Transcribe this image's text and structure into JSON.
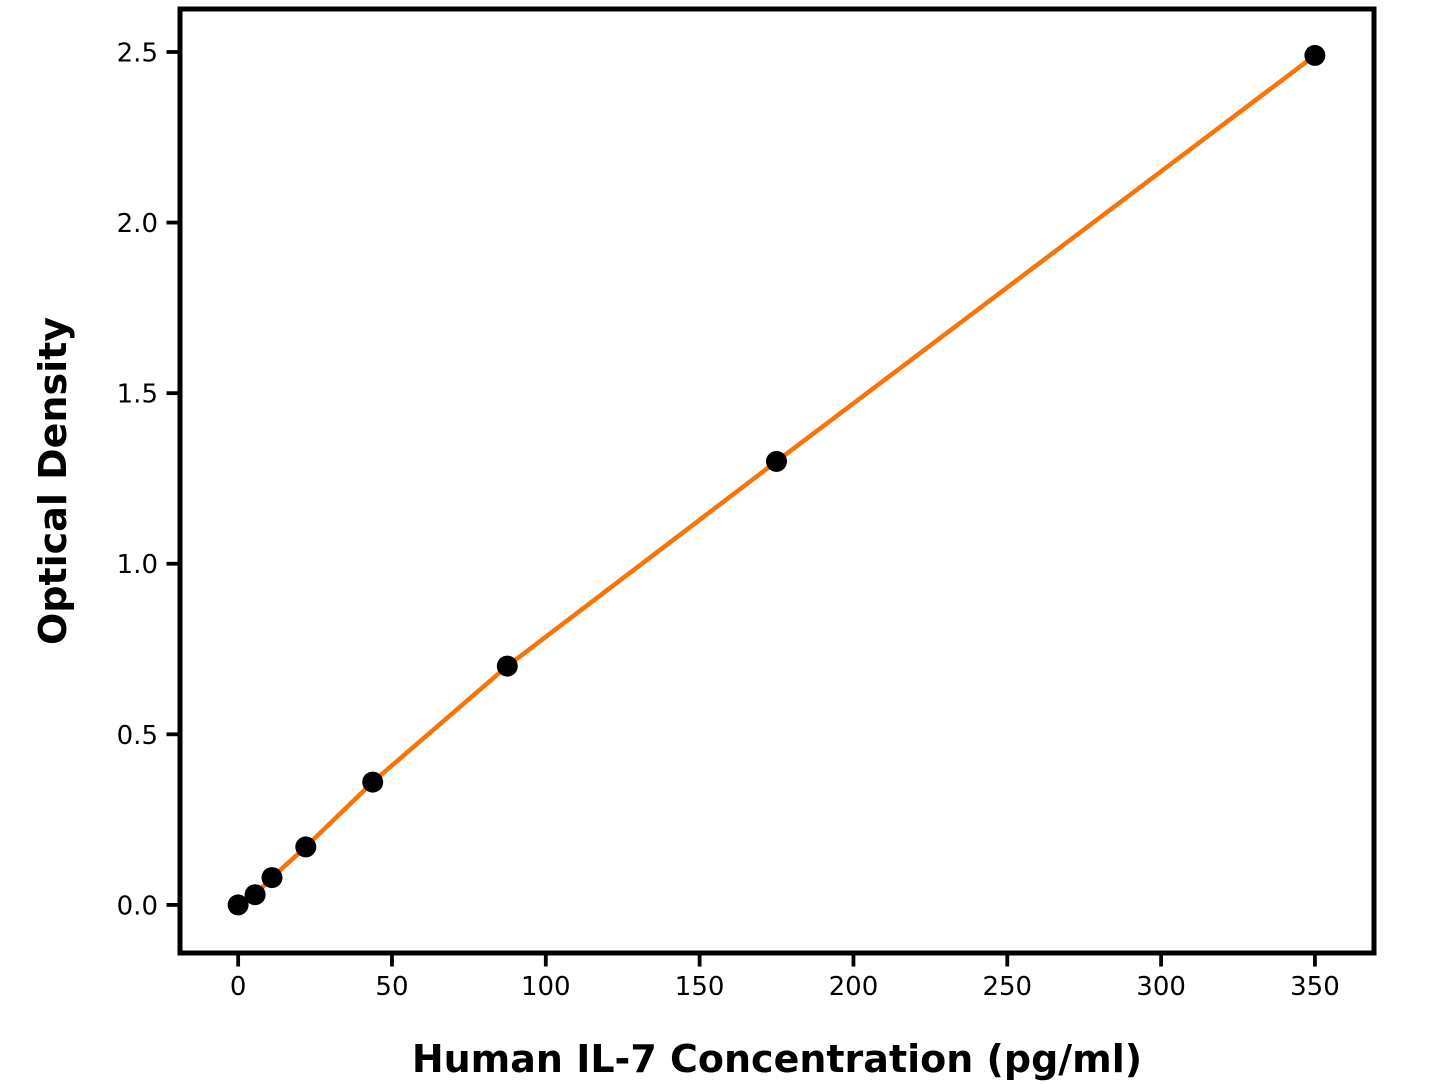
{
  "figure": {
    "background_color": "#ffffff",
    "frame_color": "#000000"
  },
  "chart_data": {
    "type": "scatter",
    "title": "",
    "xlabel": "Human IL-7 Concentration (pg/ml)",
    "ylabel": "Optical Density",
    "points": [
      {
        "x": 0,
        "y": 0.0
      },
      {
        "x": 5.5,
        "y": 0.03
      },
      {
        "x": 11,
        "y": 0.08
      },
      {
        "x": 22,
        "y": 0.17
      },
      {
        "x": 43.75,
        "y": 0.36
      },
      {
        "x": 87.5,
        "y": 0.7
      },
      {
        "x": 175,
        "y": 1.3
      },
      {
        "x": 350,
        "y": 2.49
      }
    ],
    "line": {
      "show": true,
      "color": "#F97306",
      "width": 4.5
    },
    "marker": {
      "color": "#000000",
      "radius": 10.5
    },
    "x_ticks": [
      {
        "value": 0,
        "label": "0"
      },
      {
        "value": 50,
        "label": "50"
      },
      {
        "value": 100,
        "label": "100"
      },
      {
        "value": 150,
        "label": "150"
      },
      {
        "value": 200,
        "label": "200"
      },
      {
        "value": 250,
        "label": "250"
      },
      {
        "value": 300,
        "label": "300"
      },
      {
        "value": 350,
        "label": "350"
      }
    ],
    "y_ticks": [
      {
        "value": 0.0,
        "label": "0.0"
      },
      {
        "value": 0.5,
        "label": "0.5"
      },
      {
        "value": 1.0,
        "label": "1.0"
      },
      {
        "value": 1.5,
        "label": "1.5"
      },
      {
        "value": 2.0,
        "label": "2.0"
      },
      {
        "value": 2.5,
        "label": "2.5"
      }
    ],
    "xlim": [
      -18.9,
      369.2
    ],
    "ylim": [
      -0.141,
      2.626
    ],
    "grid": false,
    "legend": null
  }
}
